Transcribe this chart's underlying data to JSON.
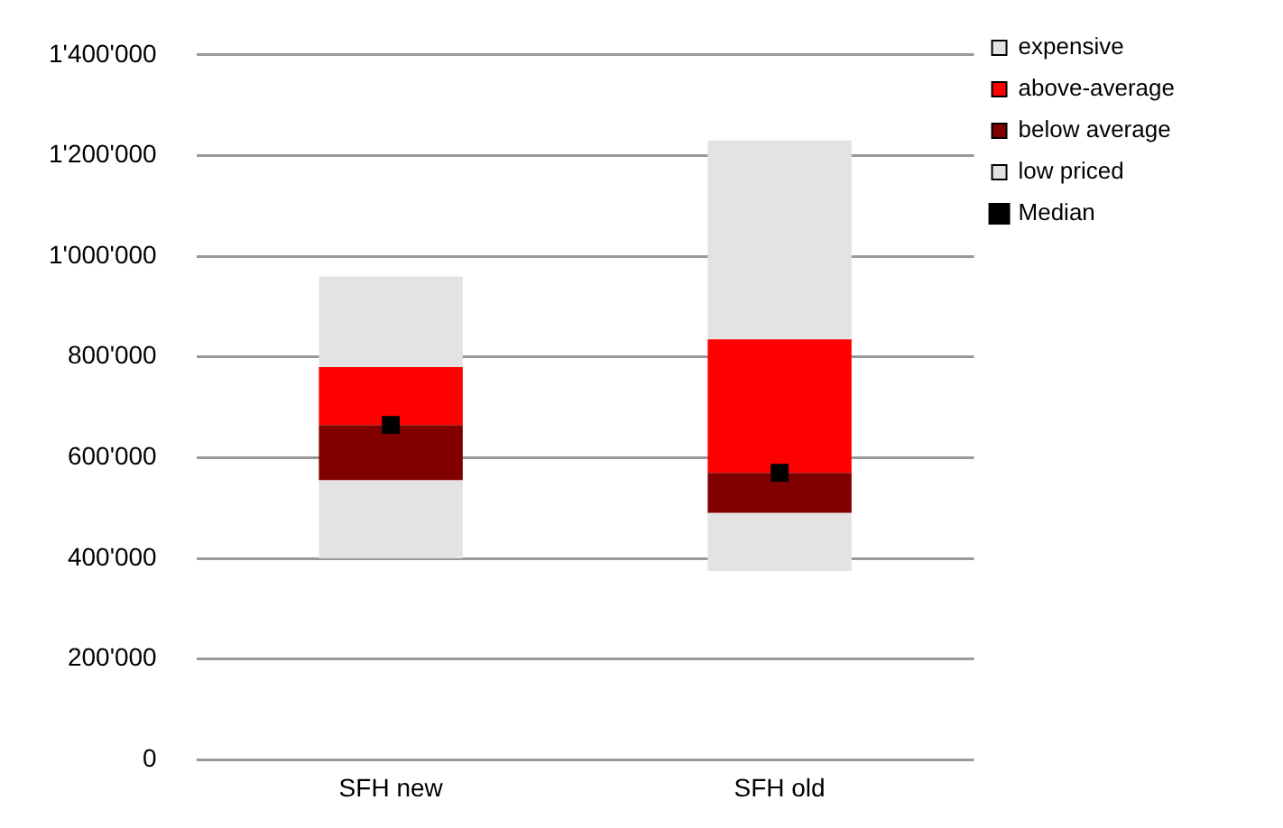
{
  "chart_data": {
    "type": "bar",
    "categories": [
      "SFH new",
      "SFH old"
    ],
    "series": [
      {
        "name": "low priced",
        "color": "#e3e3e3",
        "base": [
          400000,
          375000
        ],
        "values": [
          155000,
          115000
        ]
      },
      {
        "name": "below average",
        "color": "#800000",
        "base": [
          555000,
          490000
        ],
        "values": [
          110000,
          80000
        ]
      },
      {
        "name": "above-average",
        "color": "#ff0000",
        "base": [
          665000,
          570000
        ],
        "values": [
          115000,
          265000
        ]
      },
      {
        "name": "expensive",
        "color": "#e3e3e3",
        "base": [
          780000,
          835000
        ],
        "values": [
          180000,
          395000
        ]
      },
      {
        "name": "Median",
        "type": "scatter",
        "color": "#000000",
        "marker": "square",
        "x": [
          "SFH new",
          "SFH old"
        ],
        "values": [
          665000,
          570000
        ]
      }
    ],
    "ylim": [
      0,
      1400000
    ],
    "yticks": [
      {
        "value": 0,
        "label": "0"
      },
      {
        "value": 200000,
        "label": "200'000"
      },
      {
        "value": 400000,
        "label": "400'000"
      },
      {
        "value": 600000,
        "label": "600'000"
      },
      {
        "value": 800000,
        "label": "800'000"
      },
      {
        "value": 1000000,
        "label": "1'000'000"
      },
      {
        "value": 1200000,
        "label": "1'200'000"
      },
      {
        "value": 1400000,
        "label": "1'400'000"
      }
    ],
    "grid": "y",
    "legend": "right"
  }
}
